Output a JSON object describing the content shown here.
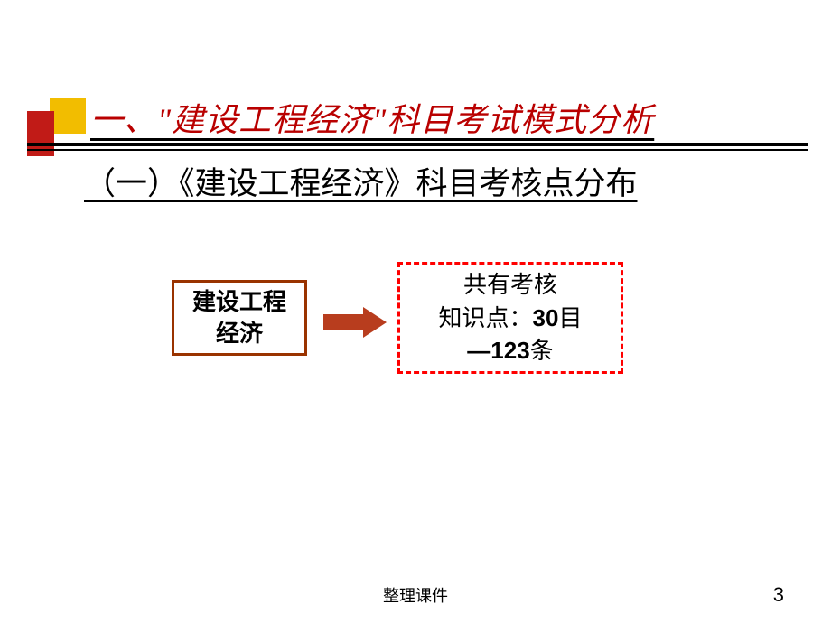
{
  "title": "一、\"建设工程经济\"科目考试模式分析",
  "subtitle": "（一）《建设工程经济》科目考核点分布",
  "diagram": {
    "left_box": {
      "line1": "建设工程",
      "line2": "经济",
      "border_color": "#993300"
    },
    "arrow_color": "#b83d1e",
    "right_box": {
      "line1": "共有考核",
      "line2_prefix": "知识点：",
      "line2_bold": "30",
      "line2_suffix": "目",
      "line3_bold": "—123",
      "line3_suffix": "条",
      "border_color": "#ff0000"
    }
  },
  "colors": {
    "title_color": "#b90000",
    "yellow_block": "#f2bd00",
    "red_block": "#c11b17",
    "background": "#ffffff"
  },
  "footer": "整理课件",
  "page_number": "3"
}
